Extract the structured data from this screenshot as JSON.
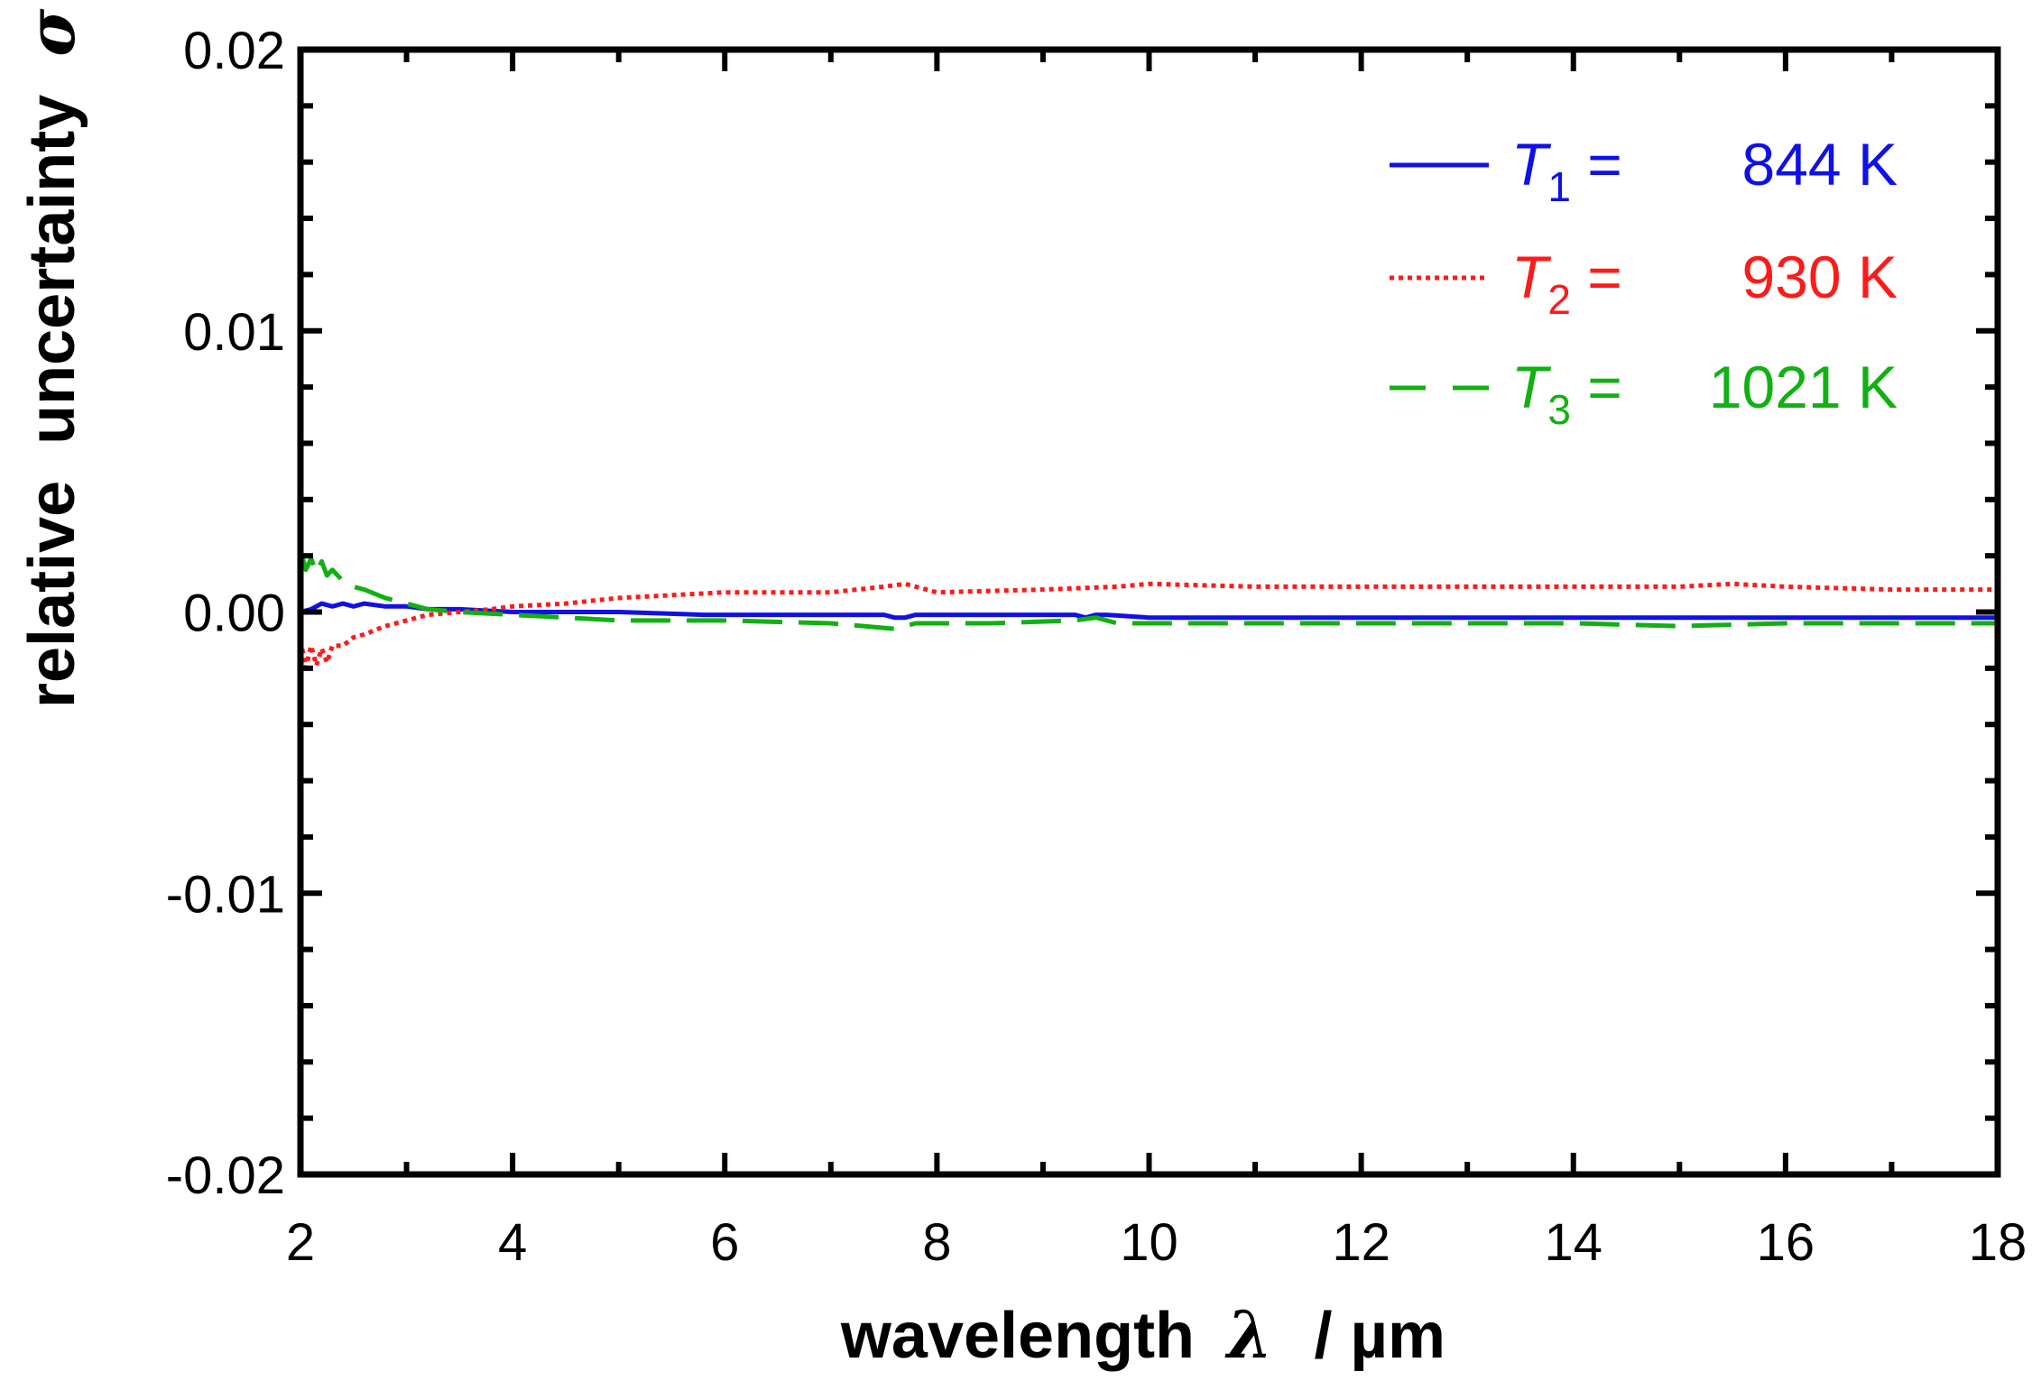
{
  "chart_data": {
    "type": "line",
    "title": "",
    "xlabel": "wavelength",
    "xlabel_symbol": "λ",
    "xlabel_unit": "/ µm",
    "ylabel": "relative  uncertainty",
    "ylabel_symbol": "σ",
    "xlim": [
      2,
      18
    ],
    "ylim": [
      -0.02,
      0.02
    ],
    "x_ticks": [
      2,
      4,
      6,
      8,
      10,
      12,
      14,
      16,
      18
    ],
    "x_tick_labels": [
      "2",
      "4",
      "6",
      "8",
      "10",
      "12",
      "14",
      "16",
      "18"
    ],
    "y_ticks": [
      -0.02,
      -0.01,
      0.0,
      0.01,
      0.02
    ],
    "y_tick_labels": [
      "-0.02",
      "-0.01",
      "0.00",
      "0.01",
      "0.02"
    ],
    "grid": false,
    "legend_position": "top-right",
    "series": [
      {
        "name": "T1",
        "legend_var": "T",
        "legend_sub": "1",
        "legend_eq": " =   ",
        "legend_value": "844 K",
        "color": "#1010e8",
        "style": "solid",
        "x": [
          2.0,
          2.1,
          2.2,
          2.3,
          2.4,
          2.5,
          2.6,
          2.8,
          3.0,
          3.2,
          3.5,
          4.0,
          5.0,
          5.8,
          6.5,
          7.5,
          7.6,
          7.7,
          7.8,
          8.5,
          9.3,
          9.4,
          9.5,
          9.6,
          10.0,
          12.0,
          14.0,
          16.0,
          18.0
        ],
        "y": [
          0.0,
          0.0001,
          0.0003,
          0.0002,
          0.0003,
          0.0002,
          0.0003,
          0.0002,
          0.0002,
          0.0001,
          0.0001,
          0.0,
          0.0,
          -0.0001,
          -0.0001,
          -0.0001,
          -0.0002,
          -0.0002,
          -0.0001,
          -0.0001,
          -0.0001,
          -0.0002,
          -0.0001,
          -0.0001,
          -0.0002,
          -0.0002,
          -0.0002,
          -0.0002,
          -0.0002
        ]
      },
      {
        "name": "T2",
        "legend_var": "T",
        "legend_sub": "2",
        "legend_eq": " =   ",
        "legend_value": "930 K",
        "color": "#ff1a1a",
        "style": "dotted",
        "x": [
          2.0,
          2.05,
          2.1,
          2.15,
          2.2,
          2.25,
          2.3,
          2.4,
          2.5,
          2.6,
          2.8,
          3.0,
          3.2,
          3.5,
          3.8,
          4.0,
          4.5,
          5.0,
          5.5,
          6.0,
          7.0,
          7.5,
          7.7,
          8.0,
          9.0,
          9.7,
          10.0,
          11.0,
          12.0,
          13.0,
          14.0,
          15.0,
          15.5,
          16.0,
          17.0,
          18.0
        ],
        "y": [
          -0.001,
          -0.002,
          -0.0012,
          -0.0019,
          -0.0013,
          -0.0018,
          -0.0012,
          -0.0012,
          -0.0009,
          -0.0008,
          -0.0005,
          -0.0003,
          -0.0001,
          0.0,
          0.0001,
          0.0002,
          0.0003,
          0.0005,
          0.0006,
          0.0007,
          0.0007,
          0.0009,
          0.001,
          0.0007,
          0.0008,
          0.0009,
          0.001,
          0.0009,
          0.0009,
          0.0009,
          0.0009,
          0.0009,
          0.001,
          0.0009,
          0.0008,
          0.0008
        ]
      },
      {
        "name": "T3",
        "legend_var": "T",
        "legend_sub": "3",
        "legend_eq": " = ",
        "legend_value": "1021 K",
        "color": "#12b012",
        "style": "dashed",
        "x": [
          2.0,
          2.05,
          2.1,
          2.15,
          2.2,
          2.25,
          2.3,
          2.4,
          2.5,
          2.6,
          2.8,
          3.0,
          3.2,
          3.5,
          4.0,
          4.5,
          5.0,
          6.0,
          7.0,
          7.6,
          7.8,
          8.5,
          9.3,
          9.5,
          9.7,
          10.0,
          12.0,
          14.0,
          15.0,
          16.0,
          18.0
        ],
        "y": [
          0.0022,
          0.0015,
          0.0019,
          0.0014,
          0.0018,
          0.0013,
          0.0015,
          0.0011,
          0.0009,
          0.0008,
          0.0005,
          0.0003,
          0.0001,
          0.0,
          -0.0001,
          -0.0002,
          -0.0003,
          -0.0003,
          -0.0004,
          -0.0006,
          -0.0004,
          -0.0004,
          -0.0003,
          -0.0002,
          -0.0004,
          -0.0004,
          -0.0004,
          -0.0004,
          -0.0005,
          -0.0004,
          -0.0004
        ]
      }
    ]
  }
}
